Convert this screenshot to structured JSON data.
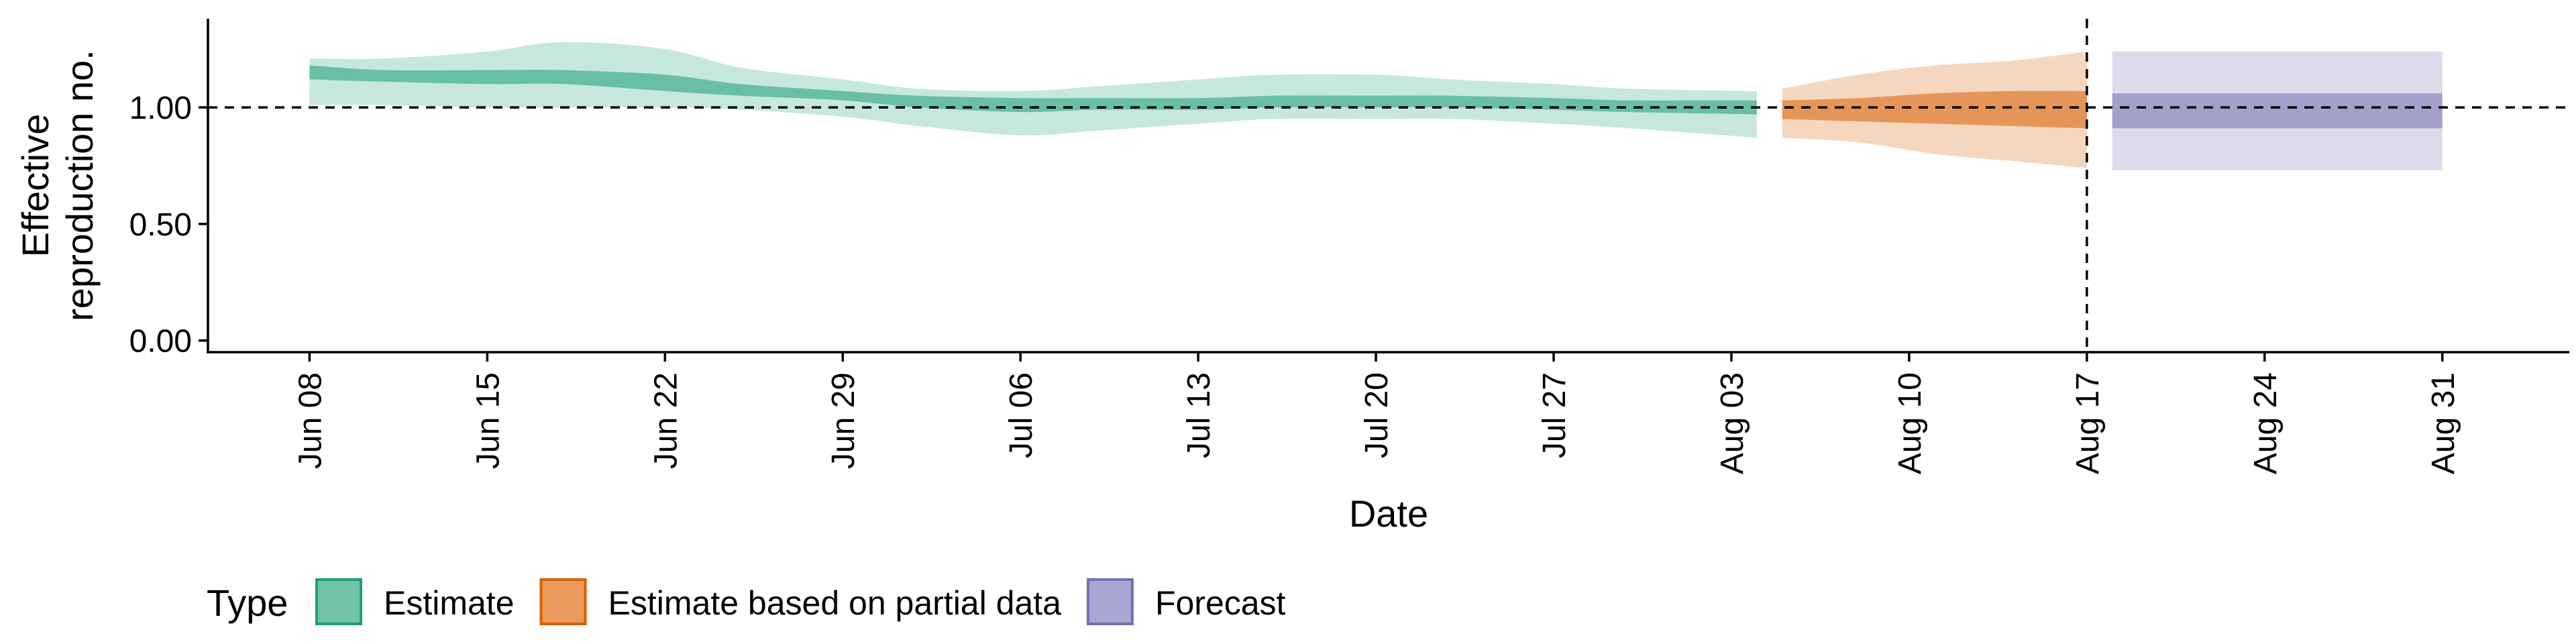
{
  "chart_data": {
    "type": "area",
    "xlabel": "Date",
    "ylabel_lines": [
      "Effective",
      "reproduction no."
    ],
    "x_ticks": [
      "Jun 08",
      "Jun 15",
      "Jun 22",
      "Jun 29",
      "Jul 06",
      "Jul 13",
      "Jul 20",
      "Jul 27",
      "Aug 03",
      "Aug 10",
      "Aug 17",
      "Aug 24",
      "Aug 31"
    ],
    "x_tick_dates": [
      "2020-06-08",
      "2020-06-15",
      "2020-06-22",
      "2020-06-29",
      "2020-07-06",
      "2020-07-13",
      "2020-07-20",
      "2020-07-27",
      "2020-08-03",
      "2020-08-10",
      "2020-08-17",
      "2020-08-24",
      "2020-08-31"
    ],
    "y_ticks": [
      "0.00",
      "0.50",
      "1.00"
    ],
    "y_tick_values": [
      0,
      0.5,
      1.0
    ],
    "xlim": [
      "2020-06-04",
      "2020-09-05"
    ],
    "ylim": [
      -0.05,
      1.38
    ],
    "reference_hline": 1.0,
    "reference_vline": "2020-08-17",
    "legend": {
      "title": "Type",
      "position": "bottom",
      "entries": [
        {
          "label": "Estimate",
          "fill": "#70c3a7",
          "stroke": "#1b9e77"
        },
        {
          "label": "Estimate based on partial data",
          "fill": "#eb9a5e",
          "stroke": "#d95f02"
        },
        {
          "label": "Forecast",
          "fill": "#a9a5d3",
          "stroke": "#7570b3"
        }
      ]
    },
    "series": [
      {
        "name": "Estimate",
        "color": "#1b9e77",
        "x": [
          "2020-06-08",
          "2020-06-11",
          "2020-06-15",
          "2020-06-18",
          "2020-06-22",
          "2020-06-25",
          "2020-06-29",
          "2020-07-02",
          "2020-07-06",
          "2020-07-09",
          "2020-07-13",
          "2020-07-16",
          "2020-07-20",
          "2020-07-23",
          "2020-07-27",
          "2020-07-30",
          "2020-08-04"
        ],
        "outer_lower": [
          1.01,
          1.01,
          1.0,
          1.0,
          1.0,
          0.99,
          0.96,
          0.92,
          0.88,
          0.9,
          0.93,
          0.95,
          0.95,
          0.95,
          0.93,
          0.91,
          0.87
        ],
        "outer_upper": [
          1.21,
          1.21,
          1.24,
          1.28,
          1.25,
          1.17,
          1.12,
          1.08,
          1.07,
          1.09,
          1.12,
          1.14,
          1.14,
          1.12,
          1.1,
          1.08,
          1.07
        ],
        "inner_lower": [
          1.12,
          1.11,
          1.1,
          1.1,
          1.07,
          1.05,
          1.03,
          1.0,
          0.98,
          0.99,
          0.99,
          1.0,
          1.0,
          1.0,
          0.99,
          0.98,
          0.97
        ],
        "inner_upper": [
          1.18,
          1.16,
          1.16,
          1.16,
          1.14,
          1.1,
          1.07,
          1.05,
          1.04,
          1.04,
          1.04,
          1.05,
          1.05,
          1.05,
          1.04,
          1.03,
          1.03
        ]
      },
      {
        "name": "Estimate based on partial data",
        "color": "#d95f02",
        "x": [
          "2020-08-05",
          "2020-08-08",
          "2020-08-11",
          "2020-08-14",
          "2020-08-17"
        ],
        "outer_lower": [
          0.87,
          0.85,
          0.8,
          0.77,
          0.74
        ],
        "outer_upper": [
          1.08,
          1.14,
          1.18,
          1.2,
          1.24
        ],
        "inner_lower": [
          0.95,
          0.94,
          0.93,
          0.92,
          0.91
        ],
        "inner_upper": [
          1.03,
          1.04,
          1.06,
          1.07,
          1.07
        ]
      },
      {
        "name": "Forecast",
        "color": "#7570b3",
        "x": [
          "2020-08-18",
          "2020-08-31"
        ],
        "outer_lower": [
          0.73,
          0.73
        ],
        "outer_upper": [
          1.24,
          1.24
        ],
        "inner_lower": [
          0.91,
          0.91
        ],
        "inner_upper": [
          1.06,
          1.06
        ]
      }
    ]
  }
}
